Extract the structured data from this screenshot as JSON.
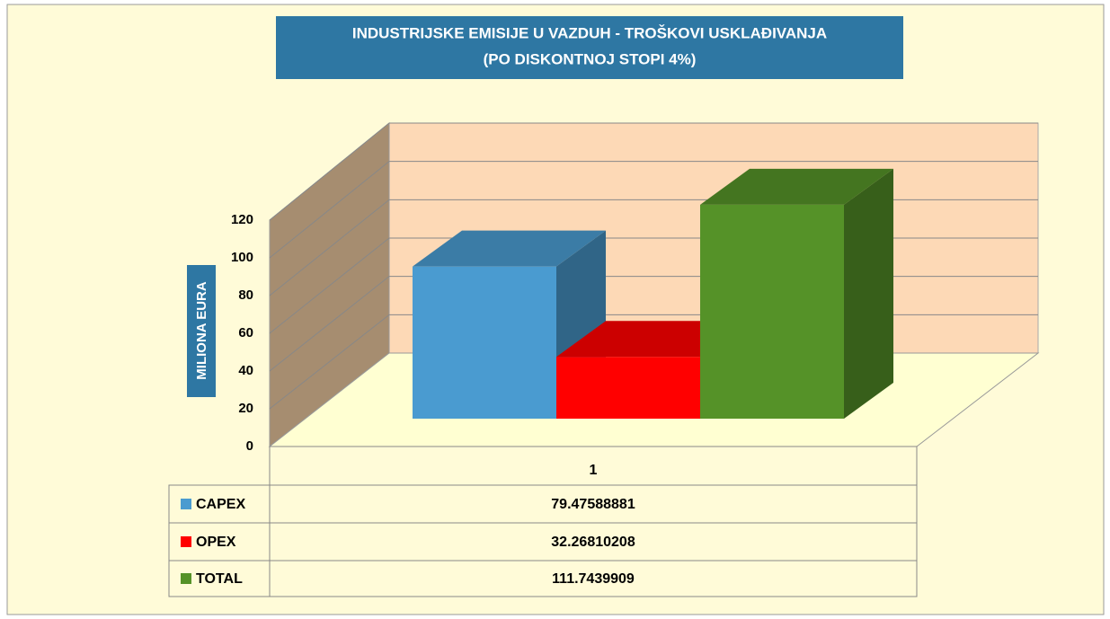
{
  "chart_data": {
    "type": "bar3d",
    "title": [
      "INDUSTRIJSKE  EMISIJE U VAZDUH - TROŠKOVI USKLAĐIVANJA",
      "(PO DISKONTNOJ STOPI 4%)"
    ],
    "y_label": "MILIONA EURA",
    "categories": [
      "1"
    ],
    "series": [
      {
        "name": "CAPEX",
        "color": "#4a9bd0",
        "values": [
          79.47588881
        ]
      },
      {
        "name": "OPEX",
        "color": "#ff0000",
        "values": [
          32.26810208
        ]
      },
      {
        "name": "TOTAL",
        "color": "#559228",
        "values": [
          111.7439909
        ]
      }
    ],
    "ylim": [
      0,
      120
    ],
    "yticks": [
      0,
      20,
      40,
      60,
      80,
      100,
      120
    ],
    "grid": true,
    "data_table": true
  }
}
